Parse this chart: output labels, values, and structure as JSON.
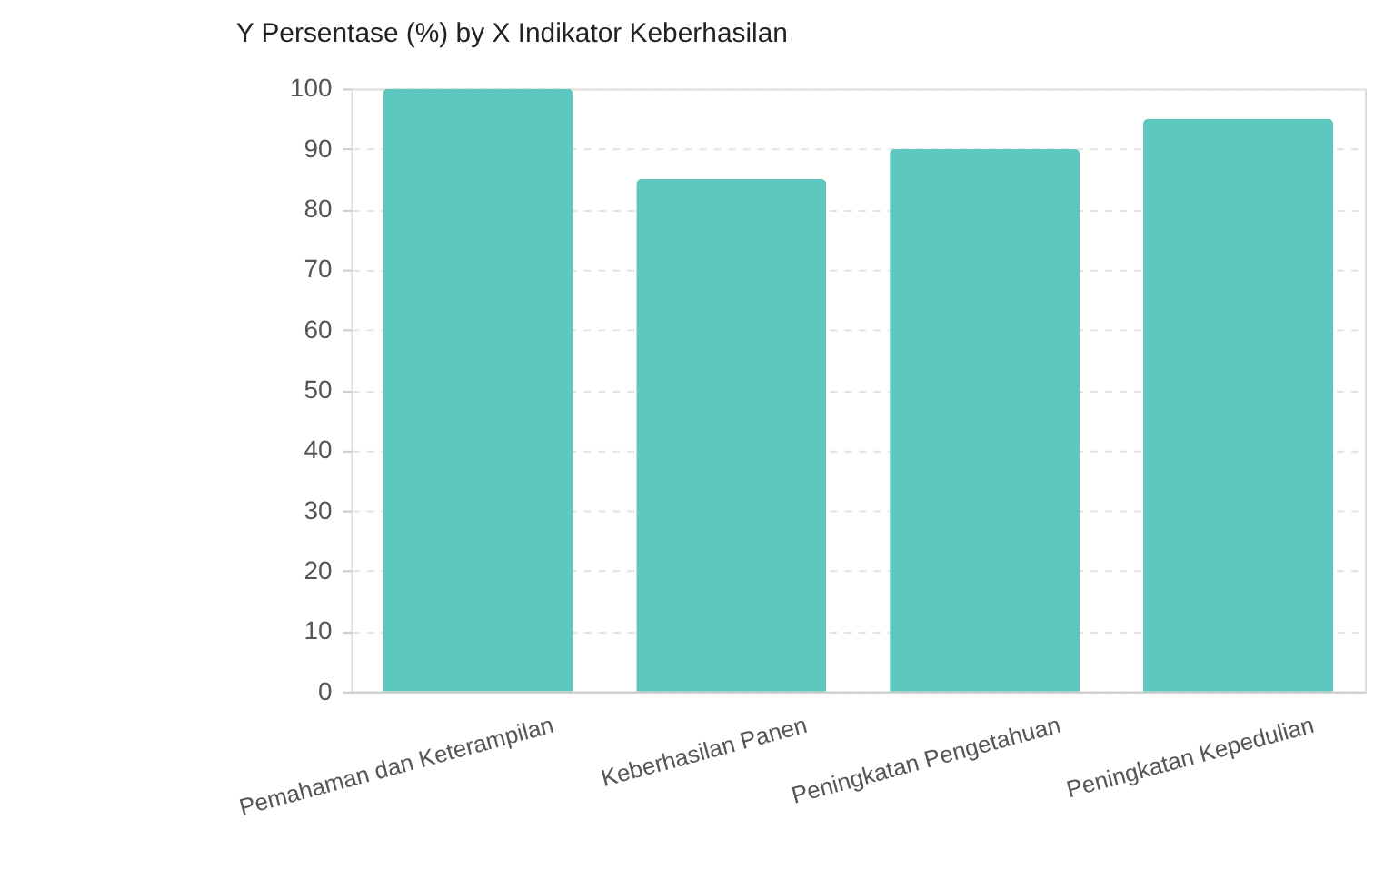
{
  "chart_data": {
    "type": "bar",
    "title": "Y Persentase (%) by X Indikator Keberhasilan",
    "categories": [
      "Pemahaman dan Keterampilan",
      "Keberhasilan Panen",
      "Peningkatan Pengetahuan",
      "Peningkatan Kepedulian"
    ],
    "values": [
      100,
      85,
      90,
      95
    ],
    "color": "#5ec8c0",
    "ylim": [
      0,
      100
    ],
    "yticks": [
      0,
      10,
      20,
      30,
      40,
      50,
      60,
      70,
      80,
      90,
      100
    ],
    "grid": "y"
  }
}
